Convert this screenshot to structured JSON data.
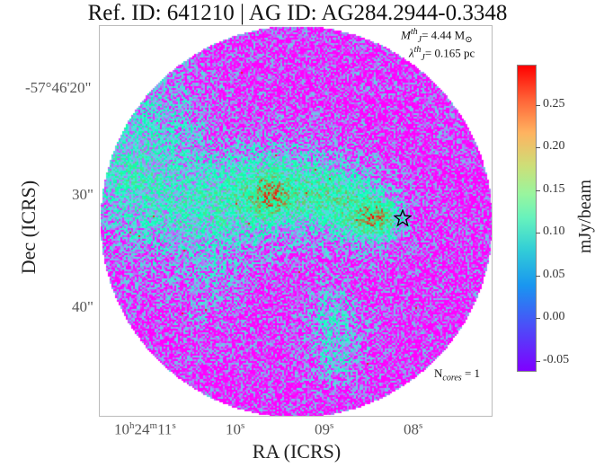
{
  "title": "Ref. ID: 641210 | AG ID: AG284.2944-0.3348",
  "chart_data": {
    "type": "heatmap",
    "title": "Ref. ID: 641210 | AG ID: AG284.2944-0.3348",
    "xlabel": "RA (ICRS)",
    "ylabel": "Dec (ICRS)",
    "x_ticks": [
      {
        "main": "10",
        "h": "h",
        "m_val": "24",
        "m": "m",
        "s_val": "11",
        "s": "s"
      },
      {
        "main": "10",
        "s": "s"
      },
      {
        "main": "09",
        "s": "s"
      },
      {
        "main": "08",
        "s": "s"
      }
    ],
    "y_ticks": [
      "-57°46'20\"",
      "30\"",
      "40\""
    ],
    "colorbar": {
      "label": "mJy/beam",
      "ticks": [
        "0.25",
        "0.20",
        "0.15",
        "0.10",
        "0.05",
        "0.00",
        "-0.05"
      ],
      "range": [
        -0.063,
        0.297
      ],
      "colormap": "rainbow"
    },
    "annotations": {
      "mass_symbol": "M",
      "mass_sup": "th",
      "mass_sub": "J",
      "mass_value": "= 4.44 M",
      "mass_unit_symbol": "⊙",
      "lambda_symbol": "λ",
      "lambda_sup": "th",
      "lambda_sub": "J",
      "lambda_value": "= 0.165 pc",
      "ncores_prefix": "N",
      "ncores_sub": "cores",
      "ncores_value": " = 1"
    },
    "markers": [
      {
        "type": "star",
        "label": "core"
      }
    ],
    "footprint": "circular"
  }
}
